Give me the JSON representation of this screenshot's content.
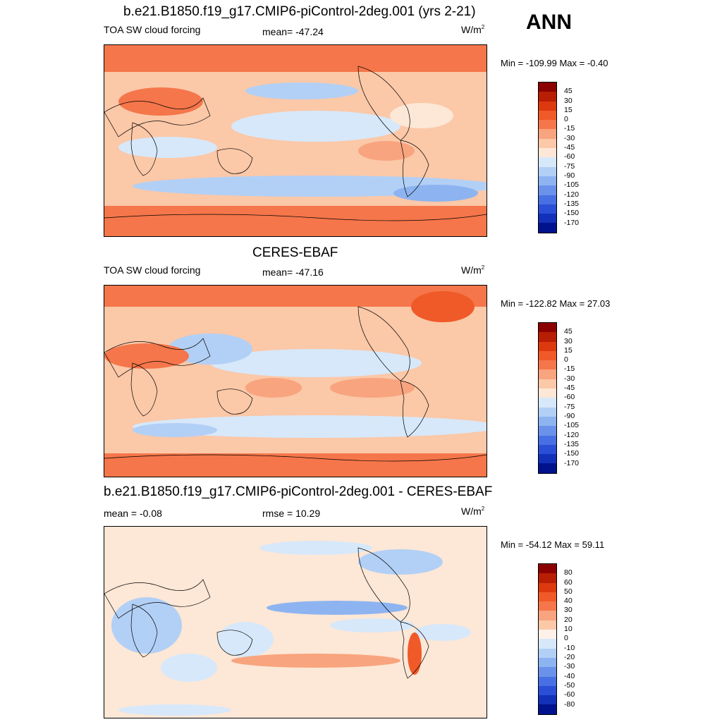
{
  "season": "ANN",
  "units_base": "W/m",
  "units_sup": "2",
  "panels": [
    {
      "title": "b.e21.B1850.f19_g17.CMIP6-piControl-2deg.001 (yrs 2-21)",
      "left_label": "TOA SW cloud forcing",
      "center_label": "mean= -47.24",
      "minmax": "Min = -109.99 Max =  -0.40",
      "colorbar": [
        "45",
        "30",
        "15",
        "0",
        "-15",
        "-30",
        "-45",
        "-60",
        "-75",
        "-90",
        "-105",
        "-120",
        "-135",
        "-150",
        "-170"
      ]
    },
    {
      "title": "CERES-EBAF",
      "left_label": "TOA SW cloud forcing",
      "center_label": "mean= -47.16",
      "minmax": "Min = -122.82 Max =  27.03",
      "colorbar": [
        "45",
        "30",
        "15",
        "0",
        "-15",
        "-30",
        "-45",
        "-60",
        "-75",
        "-90",
        "-105",
        "-120",
        "-135",
        "-150",
        "-170"
      ]
    },
    {
      "title": "b.e21.B1850.f19_g17.CMIP6-piControl-2deg.001 - CERES-EBAF",
      "left_label": "mean =  -0.08",
      "center_label": "rmse =  10.29",
      "minmax": "Min = -54.12 Max =  59.11",
      "colorbar": [
        "80",
        "60",
        "50",
        "40",
        "30",
        "20",
        "10",
        "0",
        "-10",
        "-20",
        "-30",
        "-40",
        "-50",
        "-60",
        "-80"
      ]
    }
  ],
  "colors": {
    "scale": [
      "#8b0000",
      "#b71e04",
      "#dc3a0e",
      "#f05a28",
      "#f5764a",
      "#f8a47e",
      "#fbc8a8",
      "#fde7d6",
      "#d7e8fa",
      "#b2d0f6",
      "#8db4f0",
      "#6a92ea",
      "#4670e3",
      "#2a4fd6",
      "#1230b8",
      "#00138c"
    ],
    "diff": [
      "#8b0000",
      "#b71e04",
      "#dc3a0e",
      "#f05a28",
      "#f5764a",
      "#f8a47e",
      "#fbc8a8",
      "#fde7d6",
      "#fef2e8",
      "#d7e8fa",
      "#b2d0f6",
      "#8db4f0",
      "#6a92ea",
      "#4670e3",
      "#2a4fd6",
      "#1230b8",
      "#00138c"
    ]
  }
}
